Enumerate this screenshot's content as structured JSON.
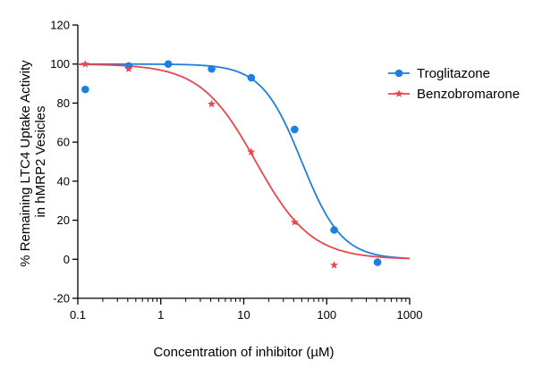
{
  "chart_data": {
    "type": "scatter",
    "title": "",
    "xlabel": "Concentration of inhibitor (µM)",
    "ylabel_lines": [
      "% Remaining LTC4 Uptake Activity",
      "in hMRP2 Vesicles"
    ],
    "xscale": "log",
    "xlim": [
      0.1,
      1000
    ],
    "ylim": [
      -20,
      120
    ],
    "x_ticks": [
      0.1,
      1,
      10,
      100,
      1000
    ],
    "x_tick_labels": [
      "0.1",
      "1",
      "10",
      "100",
      "1000"
    ],
    "y_ticks": [
      -20,
      0,
      20,
      40,
      60,
      80,
      100,
      120
    ],
    "y_tick_labels": [
      "-20",
      "0",
      "20",
      "40",
      "60",
      "80",
      "100",
      "120"
    ],
    "grid": false,
    "legend_position": "top-right",
    "series": [
      {
        "name": "Troglitazone",
        "color": "#1e7fe0",
        "marker": "circle",
        "x": [
          0.123,
          0.41,
          1.23,
          4.1,
          12.3,
          41,
          123,
          410
        ],
        "y": [
          87,
          99,
          100,
          97.5,
          93,
          66.5,
          15,
          -1.5
        ],
        "fit": {
          "model": "four-parameter logistic",
          "top": 100,
          "bottom": 0,
          "ic50": 50,
          "hill": 1.8
        }
      },
      {
        "name": "Benzobromarone",
        "color": "#e8474c",
        "marker": "star",
        "x": [
          0.123,
          0.41,
          4.1,
          12.3,
          41,
          123
        ],
        "y": [
          100,
          97.5,
          79.5,
          55,
          19,
          -3
        ],
        "fit": {
          "model": "four-parameter logistic",
          "top": 100,
          "bottom": 0,
          "ic50": 14,
          "hill": 1.3
        }
      }
    ]
  }
}
